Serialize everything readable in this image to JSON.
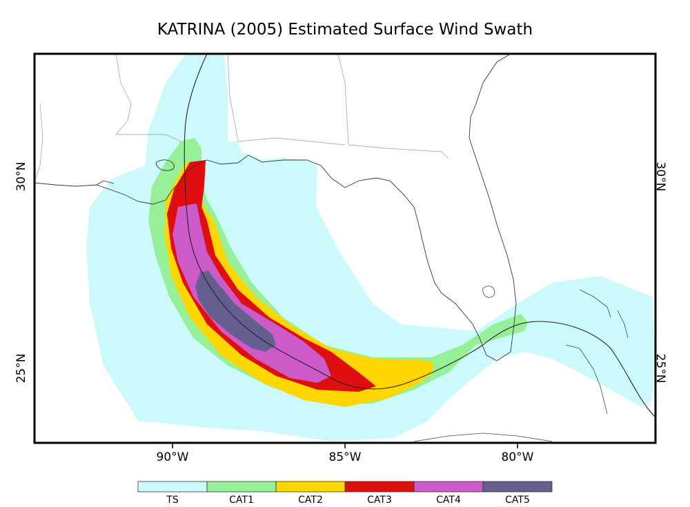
{
  "title": "KATRINA (2005) Estimated Surface Wind Swath",
  "lon_ticks": [
    "90°W",
    "85°W",
    "80°W"
  ],
  "lat_ticks_left": [
    "30°N",
    "25°N"
  ],
  "lat_ticks_right": [
    "30°N",
    "25°N"
  ],
  "legend": [
    {
      "label": "TS",
      "color": "#ccf9fb"
    },
    {
      "label": "CAT1",
      "color": "#97f097"
    },
    {
      "label": "CAT2",
      "color": "#ffd700"
    },
    {
      "label": "CAT3",
      "color": "#e00f0f"
    },
    {
      "label": "CAT4",
      "color": "#cc5ac8"
    },
    {
      "label": "CAT5",
      "color": "#655f8f"
    }
  ]
}
